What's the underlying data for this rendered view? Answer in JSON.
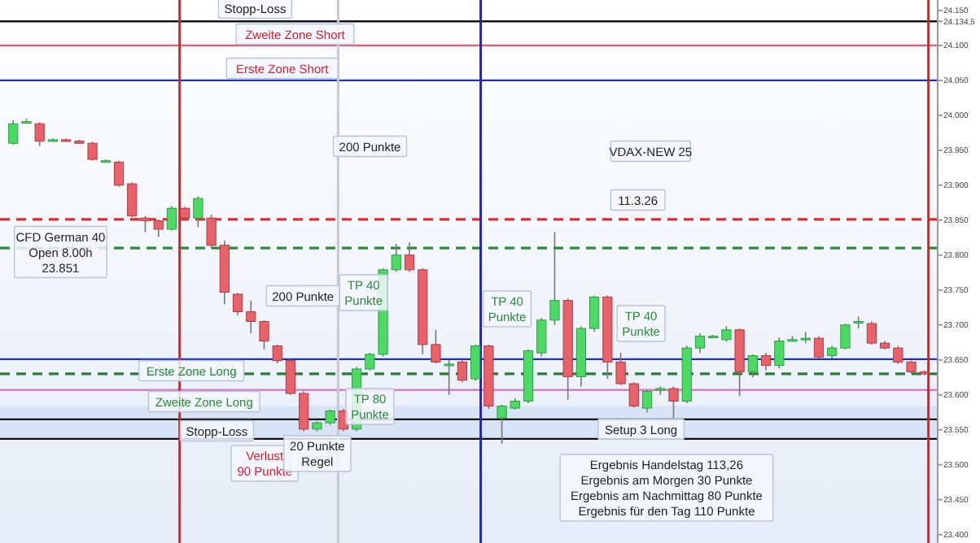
{
  "chart_data": {
    "type": "candlestick",
    "categories": [
      null,
      null,
      null,
      null,
      null,
      null,
      null,
      null,
      null,
      null,
      null,
      null,
      null,
      null,
      null,
      null,
      null,
      null,
      null,
      null,
      null,
      null,
      null,
      null,
      null,
      null,
      null,
      null,
      null,
      null,
      null,
      null,
      null,
      null,
      null,
      null,
      null,
      null,
      null,
      null,
      null,
      null,
      null,
      null,
      null,
      null,
      null,
      null,
      null,
      null,
      null,
      null,
      null,
      null,
      null,
      null,
      null,
      null,
      null,
      null,
      null,
      null,
      null,
      null,
      null,
      null,
      null,
      null,
      null,
      null
    ],
    "ohlc": [
      [
        23960,
        23993,
        23958,
        23988
      ],
      [
        23991,
        23995,
        23988,
        23991
      ],
      [
        23988,
        23990,
        23956,
        23963
      ],
      [
        23965,
        23967,
        23962,
        23965
      ],
      [
        23965,
        23967,
        23962,
        23963
      ],
      [
        23963,
        23965,
        23960,
        23960
      ],
      [
        23960,
        23962,
        23935,
        23937
      ],
      [
        23935,
        23937,
        23933,
        23935
      ],
      [
        23933,
        23935,
        23898,
        23900
      ],
      [
        23902,
        23904,
        23854,
        23856
      ],
      [
        23853,
        23856,
        23833,
        23849
      ],
      [
        23849,
        23851,
        23826,
        23837
      ],
      [
        23837,
        23870,
        23835,
        23867
      ],
      [
        23867,
        23869,
        23851,
        23853
      ],
      [
        23853,
        23884,
        23840,
        23881
      ],
      [
        23853,
        23858,
        23810,
        23814
      ],
      [
        23814,
        23821,
        23730,
        23747
      ],
      [
        23744,
        23746,
        23714,
        23719
      ],
      [
        23719,
        23735,
        23688,
        23705
      ],
      [
        23705,
        23707,
        23665,
        23677
      ],
      [
        23670,
        23672,
        23645,
        23649
      ],
      [
        23649,
        23651,
        23600,
        23602
      ],
      [
        23602,
        23605,
        23548,
        23551
      ],
      [
        23551,
        23562,
        23548,
        23560
      ],
      [
        23560,
        23579,
        23557,
        23577
      ],
      [
        23577,
        23580,
        23548,
        23551
      ],
      [
        23551,
        23640,
        23548,
        23637
      ],
      [
        23637,
        23660,
        23635,
        23658
      ],
      [
        23658,
        23781,
        23655,
        23779
      ],
      [
        23779,
        23816,
        23776,
        23800
      ],
      [
        23800,
        23818,
        23776,
        23779
      ],
      [
        23779,
        23781,
        23658,
        23672
      ],
      [
        23672,
        23693,
        23645,
        23647
      ],
      [
        23644,
        23650,
        23600,
        23644
      ],
      [
        23647,
        23650,
        23618,
        23621
      ],
      [
        23623,
        23672,
        23620,
        23670
      ],
      [
        23670,
        23672,
        23580,
        23584
      ],
      [
        23567,
        23586,
        23530,
        23584
      ],
      [
        23581,
        23595,
        23579,
        23591
      ],
      [
        23591,
        23665,
        23588,
        23663
      ],
      [
        23660,
        23710,
        23655,
        23707
      ],
      [
        23707,
        23833,
        23700,
        23735
      ],
      [
        23735,
        23738,
        23593,
        23626
      ],
      [
        23626,
        23698,
        23612,
        23695
      ],
      [
        23695,
        23742,
        23690,
        23740
      ],
      [
        23740,
        23742,
        23623,
        23647
      ],
      [
        23647,
        23660,
        23614,
        23616
      ],
      [
        23616,
        23618,
        23582,
        23584
      ],
      [
        23581,
        23607,
        23575,
        23605
      ],
      [
        23609,
        23612,
        23600,
        23609
      ],
      [
        23609,
        23612,
        23567,
        23591
      ],
      [
        23591,
        23670,
        23588,
        23667
      ],
      [
        23667,
        23688,
        23660,
        23684
      ],
      [
        23684,
        23686,
        23681,
        23684
      ],
      [
        23679,
        23698,
        23676,
        23693
      ],
      [
        23693,
        23695,
        23598,
        23633
      ],
      [
        23633,
        23658,
        23625,
        23656
      ],
      [
        23656,
        23660,
        23635,
        23642
      ],
      [
        23642,
        23682,
        23638,
        23677
      ],
      [
        23679,
        23684,
        23676,
        23679
      ],
      [
        23681,
        23690,
        23674,
        23681
      ],
      [
        23681,
        23684,
        23652,
        23654
      ],
      [
        23656,
        23670,
        23652,
        23667
      ],
      [
        23667,
        23702,
        23665,
        23700
      ],
      [
        23705,
        23712,
        23695,
        23705
      ],
      [
        23702,
        23705,
        23672,
        23674
      ],
      [
        23674,
        23677,
        23665,
        23667
      ],
      [
        23667,
        23670,
        23644,
        23647
      ],
      [
        23647,
        23649,
        23630,
        23633
      ],
      [
        23633,
        23635,
        23628,
        23630
      ]
    ],
    "ylim": [
      23388,
      24165
    ],
    "yticks": [
      {
        "value": 23400,
        "label": "23.400"
      },
      {
        "value": 23450,
        "label": "23.450"
      },
      {
        "value": 23500,
        "label": "23.500"
      },
      {
        "value": 23550,
        "label": "23.550"
      },
      {
        "value": 23600,
        "label": "23.600"
      },
      {
        "value": 23650,
        "label": "23.650"
      },
      {
        "value": 23700,
        "label": "23.700"
      },
      {
        "value": 23750,
        "label": "23.750"
      },
      {
        "value": 23800,
        "label": "23.800"
      },
      {
        "value": 23850,
        "label": "23.850"
      },
      {
        "value": 23900,
        "label": "23.900"
      },
      {
        "value": 23950,
        "label": "23.950"
      },
      {
        "value": 24000,
        "label": "24.000"
      },
      {
        "value": 24050,
        "label": "24.050"
      },
      {
        "value": 24100,
        "label": "24.100"
      },
      {
        "value": 24134.5,
        "label": "24.134,5"
      },
      {
        "value": 24150,
        "label": "24.150"
      }
    ],
    "tick_labels": "y",
    "bands": [
      {
        "axis": "y",
        "from": 23537,
        "to": 23584,
        "color": "#d3e0f5"
      }
    ],
    "ref_lines": [
      {
        "axis": "y",
        "value": 24134.5,
        "color": "#111111"
      },
      {
        "axis": "y",
        "value": 24100,
        "color": "#e06070"
      },
      {
        "axis": "y",
        "value": 24050,
        "color": "#2030c0"
      },
      {
        "axis": "y",
        "value": 23851,
        "color": "#d83030",
        "line_style": "dashed"
      },
      {
        "axis": "y",
        "value": 23810,
        "color": "#2a8a3a",
        "line_style": "dashed"
      },
      {
        "axis": "y",
        "value": 23651,
        "color": "#2030c0"
      },
      {
        "axis": "y",
        "value": 23630,
        "color": "#2a7a35",
        "line_style": "dashed"
      },
      {
        "axis": "y",
        "value": 23607,
        "color": "#d080c8"
      },
      {
        "axis": "y",
        "value": 23565,
        "color": "#111111"
      },
      {
        "axis": "y",
        "value": 23537,
        "color": "#111111"
      }
    ],
    "annotations": [
      "Stopp-Loss",
      "Zweite Zone Short",
      "Erste Zone Short",
      "200 Punkte",
      "VDAX-NEW 25",
      "11.3.26",
      "CFD German 40\nOpen 8.00h\n23.851",
      "200 Punkte",
      "TP 40\nPunkte",
      "TP 40\nPunkte",
      "TP 40\nPunkte",
      "Erste Zone Long",
      "Zweite Zone Long",
      "TP 80\nPunkte",
      "Stopp-Loss",
      "Verlust\n90 Punkte",
      "20 Punkte\nRegel",
      "Setup 3 Long",
      "Ergebnis Handelstag 113,26\nErgebnis am Morgen  30 Punkte\nErgebnis am Nachmittag 80 Punkte\nErgebnis für den Tag 110 Punkte"
    ]
  }
}
